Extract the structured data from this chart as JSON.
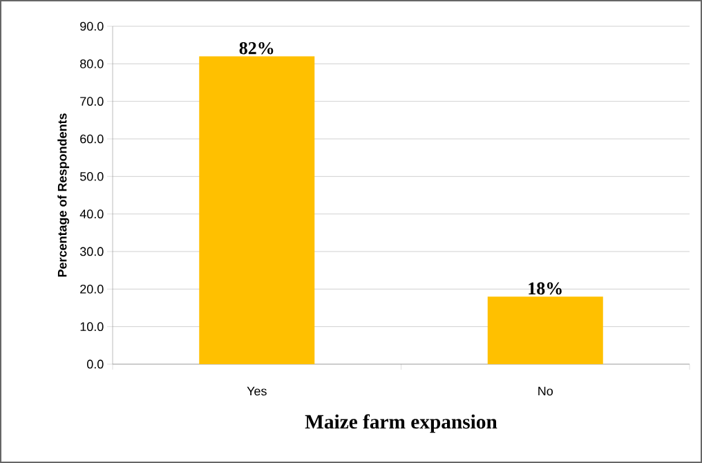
{
  "chart_data": {
    "type": "bar",
    "xlabel": "Maize farm expansion",
    "ylabel": "Percentage of Respondents",
    "categories": [
      "Yes",
      "No"
    ],
    "values": [
      82,
      18
    ],
    "value_labels": [
      "82%",
      "18%"
    ],
    "color": "#ffc000",
    "ylim": [
      0,
      90
    ],
    "yticks": [
      {
        "value": 0,
        "label": "0.0"
      },
      {
        "value": 10,
        "label": "10.0"
      },
      {
        "value": 20,
        "label": "20.0"
      },
      {
        "value": 30,
        "label": "30.0"
      },
      {
        "value": 40,
        "label": "40.0"
      },
      {
        "value": 50,
        "label": "50.0"
      },
      {
        "value": 60,
        "label": "60.0"
      },
      {
        "value": 70,
        "label": "70.0"
      },
      {
        "value": 80,
        "label": "80.0"
      },
      {
        "value": 90,
        "label": "90.0"
      }
    ],
    "grid": "y"
  }
}
